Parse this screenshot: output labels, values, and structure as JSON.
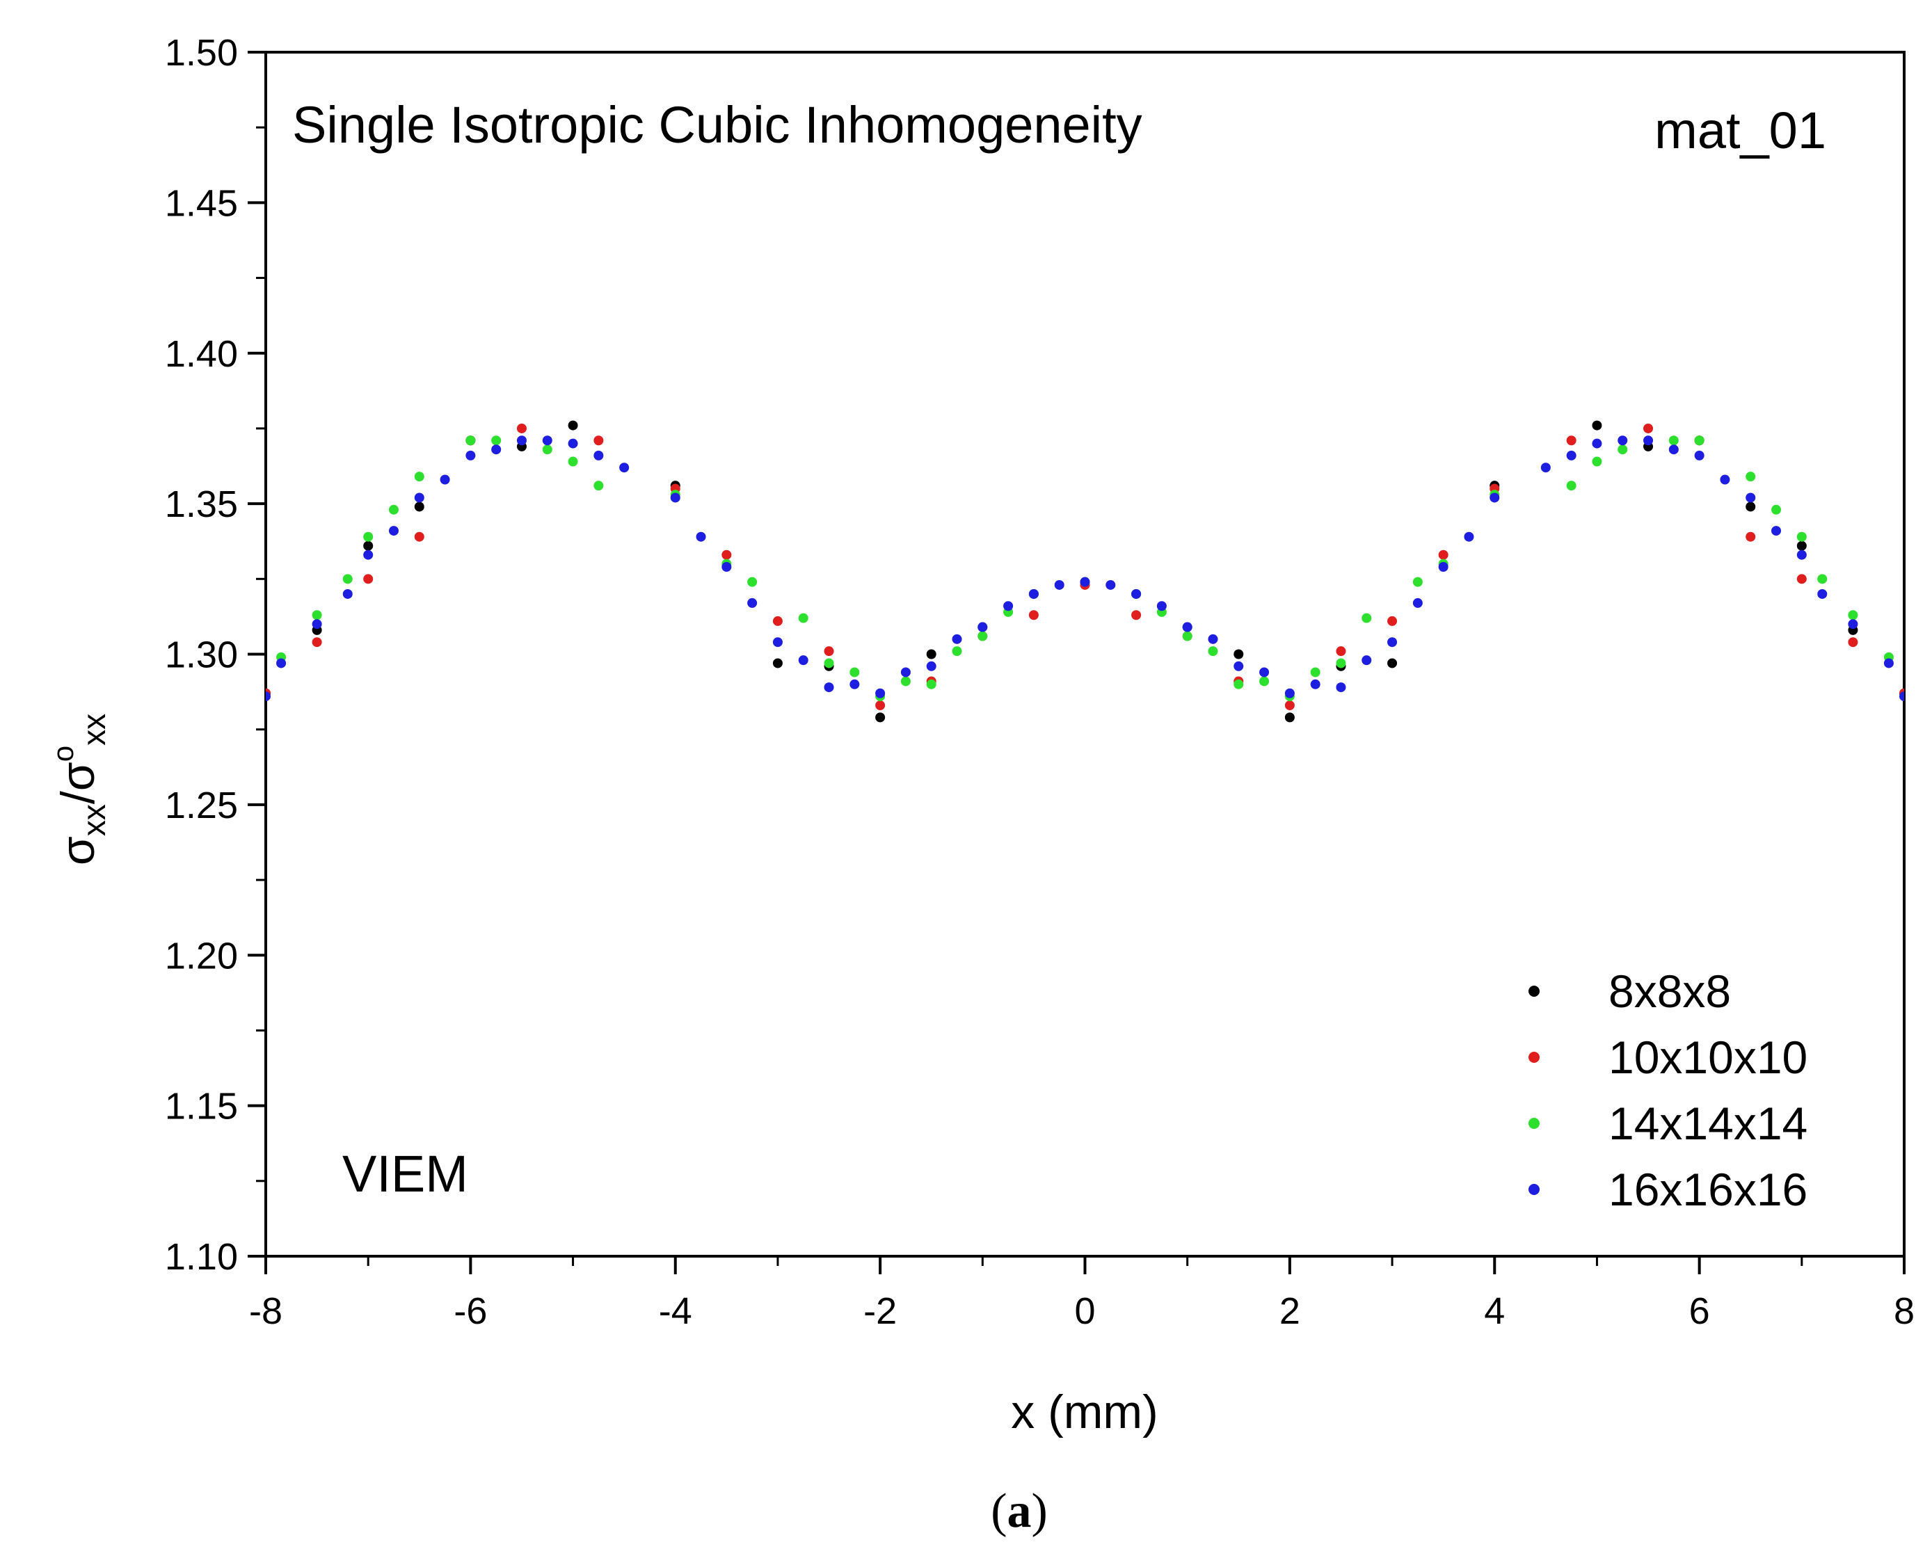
{
  "chart_data": {
    "type": "scatter",
    "xlabel": "x (mm)",
    "ylabel": {
      "base1": "σ",
      "sub1": "xx",
      "sep": "/",
      "base2": "σ",
      "sup2": "o",
      "sub2": "xx"
    },
    "xlim": [
      -8,
      8
    ],
    "ylim": [
      1.1,
      1.5
    ],
    "xticks": [
      -8,
      -6,
      -4,
      -2,
      0,
      2,
      4,
      6,
      8
    ],
    "xtick_labels": [
      "-8",
      "-6",
      "-4",
      "-2",
      "0",
      "2",
      "4",
      "6",
      "8"
    ],
    "yticks": [
      1.1,
      1.15,
      1.2,
      1.25,
      1.3,
      1.35,
      1.4,
      1.45,
      1.5
    ],
    "ytick_labels": [
      "1.10",
      "1.15",
      "1.20",
      "1.25",
      "1.30",
      "1.35",
      "1.40",
      "1.45",
      "1.50"
    ],
    "annotations": {
      "title": "Single Isotropic Cubic Inhomogeneity",
      "material": "mat_01",
      "method": "VIEM"
    },
    "subfigure_label": {
      "open": "(",
      "letter": "a",
      "close": ")"
    },
    "legend_position": "bottom-right",
    "series": [
      {
        "name": "8x8x8",
        "color": "#000000",
        "x": [
          -8,
          -7.5,
          -7,
          -6.5,
          -6,
          -5.5,
          -5,
          -4,
          -3,
          -2.5,
          -2,
          -1.5,
          -1,
          -0.5,
          0,
          0.5,
          1,
          1.5,
          2,
          2.5,
          3,
          4,
          5,
          5.5,
          6,
          6.5,
          7,
          7.5,
          8
        ],
        "y": [
          1.287,
          1.308,
          1.336,
          1.349,
          1.371,
          1.369,
          1.376,
          1.356,
          1.297,
          1.296,
          1.279,
          1.3,
          1.309,
          1.32,
          1.324,
          1.32,
          1.309,
          1.3,
          1.279,
          1.296,
          1.297,
          1.356,
          1.376,
          1.369,
          1.371,
          1.349,
          1.336,
          1.308,
          1.287
        ]
      },
      {
        "name": "10x10x10",
        "color": "#e01e1e",
        "x": [
          -8,
          -7.5,
          -7,
          -6.5,
          -6,
          -5.5,
          -4.75,
          -4,
          -3.5,
          -3,
          -2.5,
          -2,
          -1.5,
          -1,
          -0.5,
          0,
          0.5,
          1,
          1.5,
          2,
          2.5,
          3,
          3.5,
          4,
          4.75,
          5.5,
          6,
          6.5,
          7,
          7.5,
          8
        ],
        "y": [
          1.287,
          1.304,
          1.325,
          1.339,
          1.371,
          1.375,
          1.371,
          1.355,
          1.333,
          1.311,
          1.301,
          1.283,
          1.291,
          1.306,
          1.313,
          1.323,
          1.313,
          1.306,
          1.291,
          1.283,
          1.301,
          1.311,
          1.333,
          1.355,
          1.371,
          1.375,
          1.371,
          1.339,
          1.325,
          1.304,
          1.287
        ]
      },
      {
        "name": "14x14x14",
        "color": "#2ee02e",
        "x": [
          -7.85,
          -7.5,
          -7.2,
          -7,
          -6.75,
          -6.5,
          -6,
          -5.75,
          -5.25,
          -5,
          -4.75,
          -4,
          -3.5,
          -3.25,
          -2.75,
          -2.5,
          -2.25,
          -2,
          -1.75,
          -1.5,
          -1.25,
          -1,
          -0.75,
          -0.5,
          0,
          0.5,
          0.75,
          1,
          1.25,
          1.5,
          1.75,
          2,
          2.25,
          2.5,
          2.75,
          3.25,
          3.5,
          4,
          4.75,
          5,
          5.25,
          5.75,
          6,
          6.5,
          6.75,
          7,
          7.2,
          7.5,
          7.85
        ],
        "y": [
          1.299,
          1.313,
          1.325,
          1.339,
          1.348,
          1.359,
          1.371,
          1.371,
          1.368,
          1.364,
          1.356,
          1.353,
          1.33,
          1.324,
          1.312,
          1.297,
          1.294,
          1.286,
          1.291,
          1.29,
          1.301,
          1.306,
          1.314,
          1.32,
          1.324,
          1.32,
          1.314,
          1.306,
          1.301,
          1.29,
          1.291,
          1.286,
          1.294,
          1.297,
          1.312,
          1.324,
          1.33,
          1.353,
          1.356,
          1.364,
          1.368,
          1.371,
          1.371,
          1.359,
          1.348,
          1.339,
          1.325,
          1.313,
          1.299
        ]
      },
      {
        "name": "16x16x16",
        "color": "#1e1ee0",
        "x": [
          -8,
          -7.85,
          -7.5,
          -7.2,
          -7,
          -6.75,
          -6.5,
          -6.25,
          -6,
          -5.75,
          -5.5,
          -5.25,
          -5,
          -4.75,
          -4.5,
          -4,
          -3.75,
          -3.5,
          -3.25,
          -3,
          -2.75,
          -2.5,
          -2.25,
          -2,
          -1.75,
          -1.5,
          -1.25,
          -1,
          -0.75,
          -0.5,
          -0.25,
          0,
          0.25,
          0.5,
          0.75,
          1,
          1.25,
          1.5,
          1.75,
          2,
          2.25,
          2.5,
          2.75,
          3,
          3.25,
          3.5,
          3.75,
          4,
          4.5,
          4.75,
          5,
          5.25,
          5.5,
          5.75,
          6,
          6.25,
          6.5,
          6.75,
          7,
          7.2,
          7.5,
          7.85,
          8
        ],
        "y": [
          1.286,
          1.297,
          1.31,
          1.32,
          1.333,
          1.341,
          1.352,
          1.358,
          1.366,
          1.368,
          1.371,
          1.371,
          1.37,
          1.366,
          1.362,
          1.352,
          1.339,
          1.329,
          1.317,
          1.304,
          1.298,
          1.289,
          1.29,
          1.287,
          1.294,
          1.296,
          1.305,
          1.309,
          1.316,
          1.32,
          1.323,
          1.324,
          1.323,
          1.32,
          1.316,
          1.309,
          1.305,
          1.296,
          1.294,
          1.287,
          1.29,
          1.289,
          1.298,
          1.304,
          1.317,
          1.329,
          1.339,
          1.352,
          1.362,
          1.366,
          1.37,
          1.371,
          1.371,
          1.368,
          1.366,
          1.358,
          1.352,
          1.341,
          1.333,
          1.32,
          1.31,
          1.297,
          1.286
        ]
      }
    ]
  }
}
